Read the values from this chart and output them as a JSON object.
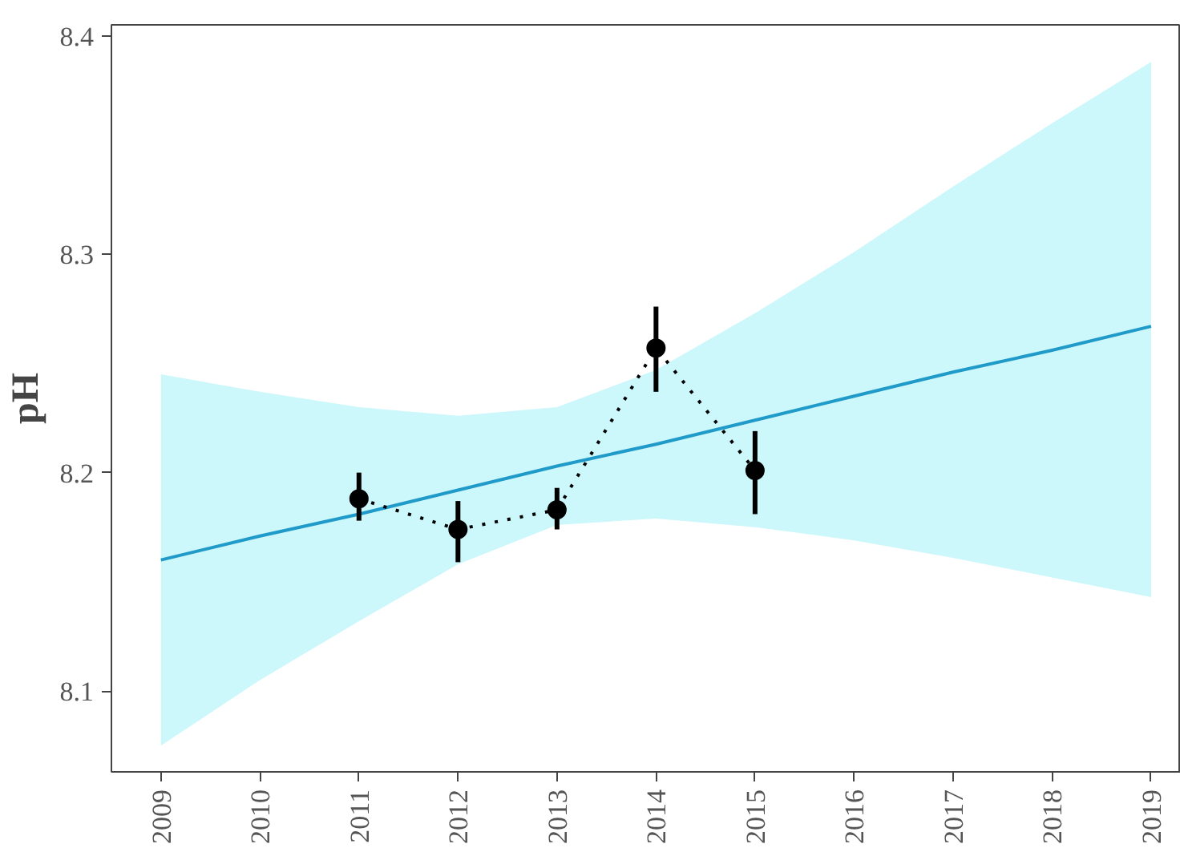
{
  "chart_data": {
    "type": "line",
    "ylabel": "pH",
    "xlim": [
      2008.5,
      2019.3
    ],
    "ylim": [
      8.063,
      8.405
    ],
    "xticks": [
      2009,
      2010,
      2011,
      2012,
      2013,
      2014,
      2015,
      2016,
      2017,
      2018,
      2019
    ],
    "yticks": [
      8.1,
      8.2,
      8.3,
      8.4
    ],
    "grid": false,
    "series": [
      {
        "color": "#1f9ac9",
        "line_style": "solid",
        "marker": "none",
        "x": [
          2009,
          2010,
          2011,
          2012,
          2013,
          2014,
          2015,
          2016,
          2017,
          2018,
          2019
        ],
        "values": [
          8.16,
          8.171,
          8.181,
          8.192,
          8.203,
          8.213,
          8.224,
          8.235,
          8.246,
          8.256,
          8.267
        ],
        "lower": [
          8.075,
          8.105,
          8.132,
          8.158,
          8.176,
          8.179,
          8.175,
          8.169,
          8.161,
          8.152,
          8.143
        ],
        "upper": [
          8.245,
          8.237,
          8.23,
          8.226,
          8.23,
          8.247,
          8.273,
          8.301,
          8.331,
          8.36,
          8.388
        ]
      },
      {
        "color": "#000000",
        "line_style": "dotted",
        "marker": "circle",
        "x": [
          2011,
          2012,
          2013,
          2014,
          2015
        ],
        "values": [
          8.188,
          8.174,
          8.183,
          8.257,
          8.201
        ],
        "errors": [
          [
            8.178,
            8.2
          ],
          [
            8.159,
            8.187
          ],
          [
            8.174,
            8.193
          ],
          [
            8.237,
            8.276
          ],
          [
            8.181,
            8.219
          ]
        ]
      }
    ]
  }
}
